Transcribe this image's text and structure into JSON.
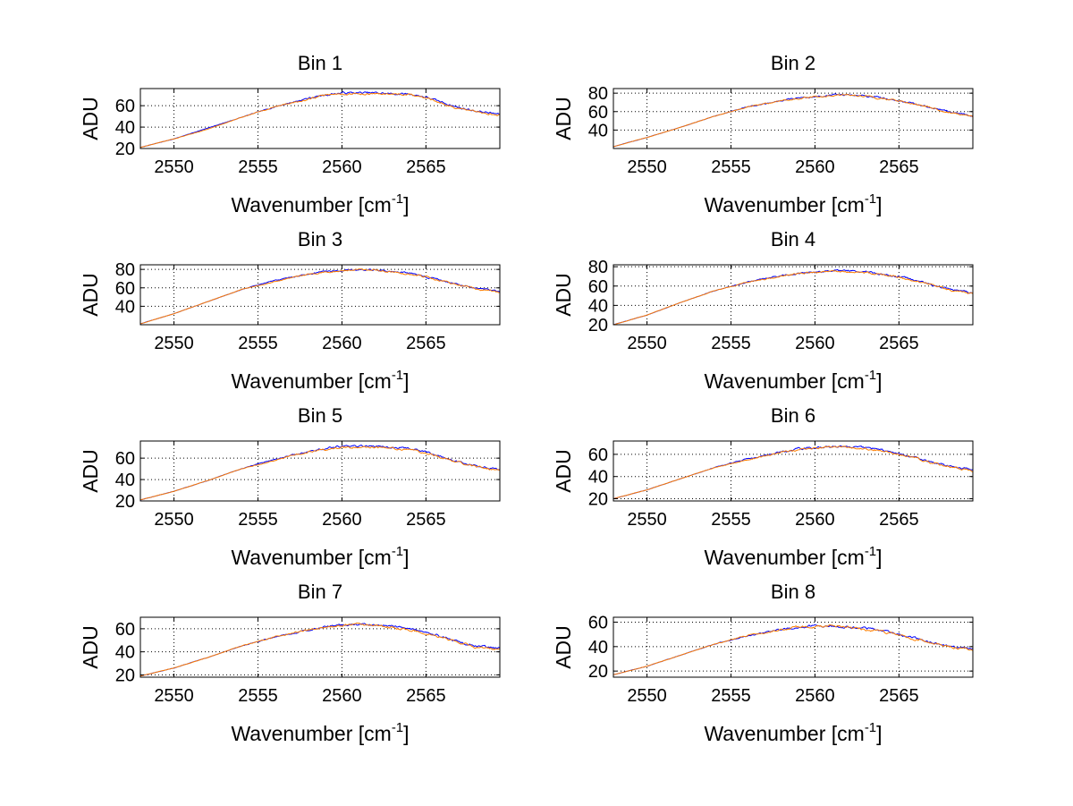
{
  "chart_data": [
    {
      "type": "line",
      "title": "Bin 1",
      "xlabel": "Wavenumber [cm",
      "xlabel_sup": "-1",
      "xlabel_end": "]",
      "ylabel": "ADU",
      "xlim": [
        2548,
        2569.4
      ],
      "ylim": [
        20,
        76
      ],
      "xticks": [
        2550,
        2555,
        2560,
        2565
      ],
      "yticks": [
        20,
        40,
        60
      ],
      "grid": true,
      "series": [
        {
          "color": "#0000ff",
          "x": [
            2548,
            2550,
            2552,
            2554,
            2556,
            2558,
            2559,
            2560,
            2561,
            2562,
            2563,
            2564,
            2565,
            2566,
            2567,
            2568,
            2569.4
          ],
          "y": [
            21,
            29,
            39,
            49,
            59,
            67,
            70,
            72,
            72,
            72,
            71,
            71,
            68,
            63,
            58,
            55,
            52
          ]
        },
        {
          "color": "#ff7f00",
          "x": [
            2548,
            2550,
            2552,
            2554,
            2556,
            2558,
            2559,
            2560,
            2561,
            2562,
            2563,
            2564,
            2565,
            2566,
            2567,
            2568,
            2569.4
          ],
          "y": [
            21,
            29,
            38,
            49,
            59,
            66,
            70,
            71,
            71,
            71,
            71,
            70,
            67,
            62,
            57,
            54,
            51
          ]
        }
      ]
    },
    {
      "type": "line",
      "title": "Bin 2",
      "xlabel": "Wavenumber [cm",
      "xlabel_sup": "-1",
      "xlabel_end": "]",
      "ylabel": "ADU",
      "xlim": [
        2548,
        2569.4
      ],
      "ylim": [
        20,
        85
      ],
      "xticks": [
        2550,
        2555,
        2560,
        2565
      ],
      "yticks": [
        40,
        60,
        80
      ],
      "grid": true,
      "series": [
        {
          "color": "#0000ff",
          "x": [
            2548,
            2550,
            2552,
            2554,
            2556,
            2558,
            2559,
            2560,
            2561,
            2562,
            2563,
            2564,
            2565,
            2566,
            2567,
            2568,
            2569.4
          ],
          "y": [
            22,
            32,
            43,
            55,
            65,
            72,
            75,
            76,
            78,
            78,
            77,
            75,
            72,
            68,
            64,
            60,
            55
          ]
        },
        {
          "color": "#ff7f00",
          "x": [
            2548,
            2550,
            2552,
            2554,
            2556,
            2558,
            2559,
            2560,
            2561,
            2562,
            2563,
            2564,
            2565,
            2566,
            2567,
            2568,
            2569.4
          ],
          "y": [
            22,
            32,
            43,
            55,
            65,
            72,
            74,
            76,
            77,
            78,
            77,
            74,
            72,
            68,
            64,
            59,
            54
          ]
        }
      ]
    },
    {
      "type": "line",
      "title": "Bin 3",
      "xlabel": "Wavenumber [cm",
      "xlabel_sup": "-1",
      "xlabel_end": "]",
      "ylabel": "ADU",
      "xlim": [
        2548,
        2569.4
      ],
      "ylim": [
        20,
        85
      ],
      "xticks": [
        2550,
        2555,
        2560,
        2565
      ],
      "yticks": [
        40,
        60,
        80
      ],
      "grid": true,
      "series": [
        {
          "color": "#0000ff",
          "x": [
            2548,
            2550,
            2552,
            2554,
            2556,
            2558,
            2559,
            2560,
            2561,
            2562,
            2563,
            2564,
            2565,
            2566,
            2567,
            2568,
            2569.4
          ],
          "y": [
            21,
            32,
            45,
            58,
            68,
            75,
            78,
            79,
            80,
            79,
            78,
            76,
            72,
            68,
            63,
            59,
            56
          ]
        },
        {
          "color": "#ff7f00",
          "x": [
            2548,
            2550,
            2552,
            2554,
            2556,
            2558,
            2559,
            2560,
            2561,
            2562,
            2563,
            2564,
            2565,
            2566,
            2567,
            2568,
            2569.4
          ],
          "y": [
            21,
            32,
            45,
            58,
            67,
            75,
            77,
            79,
            80,
            79,
            77,
            75,
            72,
            67,
            63,
            59,
            55
          ]
        }
      ]
    },
    {
      "type": "line",
      "title": "Bin 4",
      "xlabel": "Wavenumber [cm",
      "xlabel_sup": "-1",
      "xlabel_end": "]",
      "ylabel": "ADU",
      "xlim": [
        2548,
        2569.4
      ],
      "ylim": [
        20,
        82
      ],
      "xticks": [
        2550,
        2555,
        2560,
        2565
      ],
      "yticks": [
        20,
        40,
        60,
        80
      ],
      "grid": true,
      "series": [
        {
          "color": "#0000ff",
          "x": [
            2548,
            2550,
            2552,
            2554,
            2556,
            2558,
            2559,
            2560,
            2561,
            2562,
            2563,
            2564,
            2565,
            2566,
            2567,
            2568,
            2569.4
          ],
          "y": [
            20,
            30,
            43,
            55,
            64,
            71,
            73,
            74,
            76,
            76,
            75,
            72,
            70,
            66,
            61,
            57,
            53
          ]
        },
        {
          "color": "#ff7f00",
          "x": [
            2548,
            2550,
            2552,
            2554,
            2556,
            2558,
            2559,
            2560,
            2561,
            2562,
            2563,
            2564,
            2565,
            2566,
            2567,
            2568,
            2569.4
          ],
          "y": [
            20,
            30,
            43,
            55,
            64,
            70,
            73,
            74,
            76,
            75,
            74,
            72,
            69,
            65,
            61,
            56,
            52
          ]
        }
      ]
    },
    {
      "type": "line",
      "title": "Bin 5",
      "xlabel": "Wavenumber [cm",
      "xlabel_sup": "-1",
      "xlabel_end": "]",
      "ylabel": "ADU",
      "xlim": [
        2548,
        2569.4
      ],
      "ylim": [
        20,
        76
      ],
      "xticks": [
        2550,
        2555,
        2560,
        2565
      ],
      "yticks": [
        20,
        40,
        60
      ],
      "grid": true,
      "series": [
        {
          "color": "#0000ff",
          "x": [
            2548,
            2550,
            2552,
            2554,
            2556,
            2558,
            2559,
            2560,
            2561,
            2562,
            2563,
            2564,
            2565,
            2566,
            2567,
            2568,
            2569.4
          ],
          "y": [
            21,
            29,
            39,
            50,
            59,
            66,
            69,
            71,
            71,
            71,
            70,
            69,
            66,
            61,
            56,
            53,
            49
          ]
        },
        {
          "color": "#ff7f00",
          "x": [
            2548,
            2550,
            2552,
            2554,
            2556,
            2558,
            2559,
            2560,
            2561,
            2562,
            2563,
            2564,
            2565,
            2566,
            2567,
            2568,
            2569.4
          ],
          "y": [
            21,
            29,
            39,
            50,
            58,
            66,
            68,
            70,
            70,
            70,
            69,
            68,
            65,
            60,
            56,
            52,
            48
          ]
        }
      ]
    },
    {
      "type": "line",
      "title": "Bin 6",
      "xlabel": "Wavenumber [cm",
      "xlabel_sup": "-1",
      "xlabel_end": "]",
      "ylabel": "ADU",
      "xlim": [
        2548,
        2569.4
      ],
      "ylim": [
        18,
        72
      ],
      "xticks": [
        2550,
        2555,
        2560,
        2565
      ],
      "yticks": [
        20,
        40,
        60
      ],
      "grid": true,
      "series": [
        {
          "color": "#0000ff",
          "x": [
            2548,
            2550,
            2552,
            2554,
            2556,
            2558,
            2559,
            2560,
            2561,
            2562,
            2563,
            2564,
            2565,
            2566,
            2567,
            2568,
            2569.4
          ],
          "y": [
            20,
            28,
            38,
            48,
            56,
            62,
            65,
            66,
            67,
            67,
            66,
            64,
            61,
            57,
            53,
            49,
            46
          ]
        },
        {
          "color": "#ff7f00",
          "x": [
            2548,
            2550,
            2552,
            2554,
            2556,
            2558,
            2559,
            2560,
            2561,
            2562,
            2563,
            2564,
            2565,
            2566,
            2567,
            2568,
            2569.4
          ],
          "y": [
            20,
            28,
            38,
            48,
            55,
            62,
            64,
            66,
            67,
            66,
            65,
            63,
            60,
            57,
            52,
            49,
            45
          ]
        }
      ]
    },
    {
      "type": "line",
      "title": "Bin 7",
      "xlabel": "Wavenumber [cm",
      "xlabel_sup": "-1",
      "xlabel_end": "]",
      "ylabel": "ADU",
      "xlim": [
        2548,
        2569.4
      ],
      "ylim": [
        18,
        70
      ],
      "xticks": [
        2550,
        2555,
        2560,
        2565
      ],
      "yticks": [
        20,
        40,
        60
      ],
      "grid": true,
      "series": [
        {
          "color": "#0000ff",
          "x": [
            2548,
            2550,
            2552,
            2554,
            2556,
            2558,
            2559,
            2560,
            2561,
            2562,
            2563,
            2564,
            2565,
            2566,
            2567,
            2568,
            2569.4
          ],
          "y": [
            19,
            26,
            35,
            45,
            53,
            59,
            62,
            63,
            64,
            63,
            62,
            60,
            57,
            53,
            48,
            45,
            43
          ]
        },
        {
          "color": "#ff7f00",
          "x": [
            2548,
            2550,
            2552,
            2554,
            2556,
            2558,
            2559,
            2560,
            2561,
            2562,
            2563,
            2564,
            2565,
            2566,
            2567,
            2568,
            2569.4
          ],
          "y": [
            19,
            26,
            35,
            45,
            53,
            59,
            61,
            63,
            64,
            63,
            61,
            59,
            56,
            52,
            48,
            44,
            42
          ]
        }
      ]
    },
    {
      "type": "line",
      "title": "Bin 8",
      "xlabel": "Wavenumber [cm",
      "xlabel_sup": "-1",
      "xlabel_end": "]",
      "ylabel": "ADU",
      "xlim": [
        2548,
        2569.4
      ],
      "ylim": [
        15,
        64
      ],
      "xticks": [
        2550,
        2555,
        2560,
        2565
      ],
      "yticks": [
        20,
        40,
        60
      ],
      "grid": true,
      "series": [
        {
          "color": "#0000ff",
          "x": [
            2548,
            2550,
            2552,
            2554,
            2556,
            2558,
            2559,
            2560,
            2561,
            2562,
            2563,
            2564,
            2565,
            2566,
            2567,
            2568,
            2569.4
          ],
          "y": [
            17,
            24,
            33,
            42,
            49,
            54,
            56,
            57,
            57,
            56,
            55,
            53,
            50,
            47,
            43,
            40,
            38
          ]
        },
        {
          "color": "#ff7f00",
          "x": [
            2548,
            2550,
            2552,
            2554,
            2556,
            2558,
            2559,
            2560,
            2561,
            2562,
            2563,
            2564,
            2565,
            2566,
            2567,
            2568,
            2569.4
          ],
          "y": [
            17,
            24,
            33,
            42,
            49,
            54,
            56,
            56,
            57,
            56,
            54,
            52,
            50,
            46,
            43,
            40,
            37
          ]
        }
      ]
    }
  ]
}
